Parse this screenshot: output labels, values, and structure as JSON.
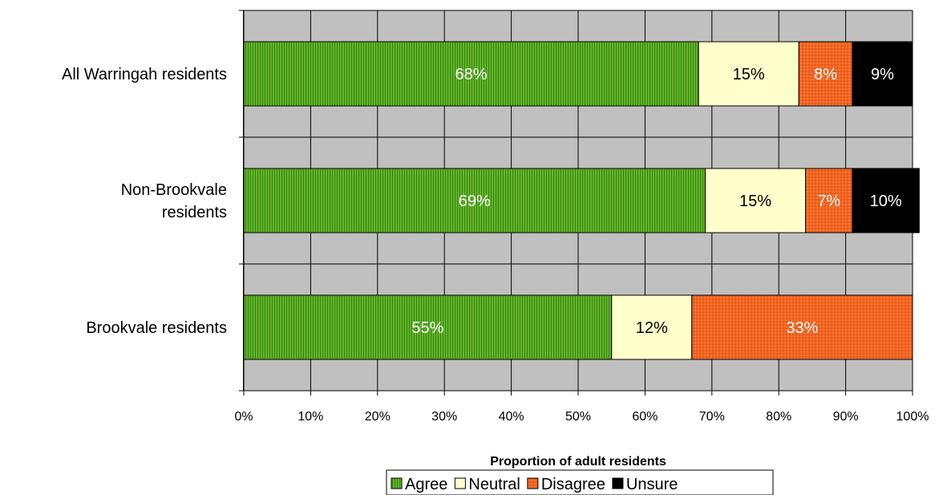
{
  "chart_data": {
    "type": "bar",
    "orientation": "horizontal",
    "stacked": true,
    "percent_stacked": true,
    "categories": [
      "All Warringah residents",
      "Non-Brookvale residents",
      "Brookvale residents"
    ],
    "category_lines": [
      [
        "All Warringah residents"
      ],
      [
        "Non-Brookvale",
        "residents"
      ],
      [
        "Brookvale residents"
      ]
    ],
    "series": [
      {
        "name": "Agree",
        "values": [
          68,
          69,
          55
        ],
        "labels": [
          "68%",
          "69%",
          "55%"
        ],
        "color": "#66B032",
        "label_color": "#ffffff"
      },
      {
        "name": "Neutral",
        "values": [
          15,
          15,
          12
        ],
        "labels": [
          "15%",
          "15%",
          "12%"
        ],
        "color": "#FFFFCC",
        "label_color": "#000000"
      },
      {
        "name": "Disagree",
        "values": [
          8,
          7,
          33
        ],
        "labels": [
          "8%",
          "7%",
          "33%"
        ],
        "color": "#F26522",
        "label_color": "#ffffff"
      },
      {
        "name": "Unsure",
        "values": [
          9,
          10,
          0
        ],
        "labels": [
          "9%",
          "10%",
          ""
        ],
        "color": "#000000",
        "label_color": "#ffffff"
      }
    ],
    "xlabel": "Proportion of adult residents",
    "ylabel": "",
    "xlim": [
      0,
      100
    ],
    "x_ticks": [
      "0%",
      "10%",
      "20%",
      "30%",
      "40%",
      "50%",
      "60%",
      "70%",
      "80%",
      "90%",
      "100%"
    ],
    "plot_background": "#C0C0C0",
    "grid": true,
    "legend_position": "bottom"
  }
}
